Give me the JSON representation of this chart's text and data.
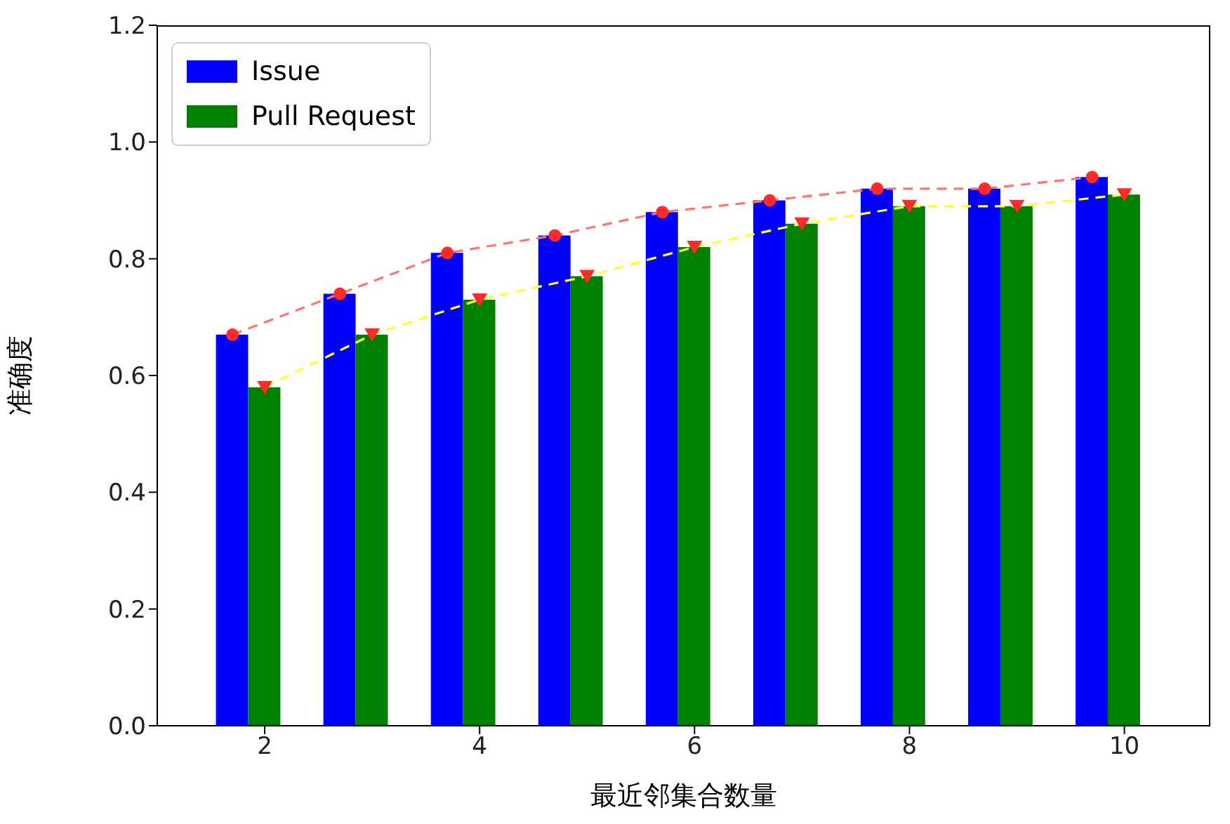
{
  "chart_data": {
    "type": "bar",
    "xlabel": "最近邻集合数量",
    "ylabel": "准确度",
    "x": [
      2,
      3,
      4,
      5,
      6,
      7,
      8,
      9,
      10
    ],
    "series": [
      {
        "name": "Issue",
        "color": "#0000ff",
        "values": [
          0.67,
          0.74,
          0.81,
          0.84,
          0.88,
          0.9,
          0.92,
          0.92,
          0.94
        ]
      },
      {
        "name": "Pull Request",
        "color": "#008000",
        "values": [
          0.58,
          0.67,
          0.73,
          0.77,
          0.82,
          0.86,
          0.89,
          0.89,
          0.91
        ]
      },
      {
        "type": "line",
        "color": "#ff7373",
        "line_style": "dashed",
        "x": [
          1.7,
          2.7,
          3.7,
          4.7,
          5.7,
          6.7,
          7.7,
          8.7,
          9.7
        ],
        "values": [
          0.67,
          0.74,
          0.81,
          0.84,
          0.88,
          0.9,
          0.92,
          0.92,
          0.94
        ]
      },
      {
        "type": "line",
        "color": "#ffff33",
        "line_style": "dashed",
        "values": [
          0.58,
          0.67,
          0.73,
          0.77,
          0.82,
          0.86,
          0.89,
          0.89,
          0.91
        ]
      },
      {
        "type": "scatter",
        "color": "#ff2a2a",
        "marker": "circle",
        "x": [
          1.7,
          2.7,
          3.7,
          4.7,
          5.7,
          6.7,
          7.7,
          8.7,
          9.7
        ],
        "values": [
          0.67,
          0.74,
          0.81,
          0.84,
          0.88,
          0.9,
          0.92,
          0.92,
          0.94
        ]
      },
      {
        "type": "scatter",
        "color": "#ff2a2a",
        "marker": "triangle",
        "values": [
          0.58,
          0.67,
          0.73,
          0.77,
          0.82,
          0.86,
          0.89,
          0.89,
          0.91
        ]
      }
    ],
    "xlim": [
      1.0,
      10.8
    ],
    "xticks": [
      2,
      4,
      6,
      8,
      10
    ],
    "ylim": [
      0,
      1.2
    ],
    "yticks": [
      {
        "value": 0,
        "label": "0.0"
      },
      {
        "value": 0.2,
        "label": "0.2"
      },
      {
        "value": 0.4,
        "label": "0.4"
      },
      {
        "value": 0.6,
        "label": "0.6"
      },
      {
        "value": 0.8,
        "label": "0.8"
      },
      {
        "value": 1.0,
        "label": "1.0"
      },
      {
        "value": 1.2,
        "label": "1.2"
      }
    ],
    "grid": false,
    "legend": "top left"
  }
}
